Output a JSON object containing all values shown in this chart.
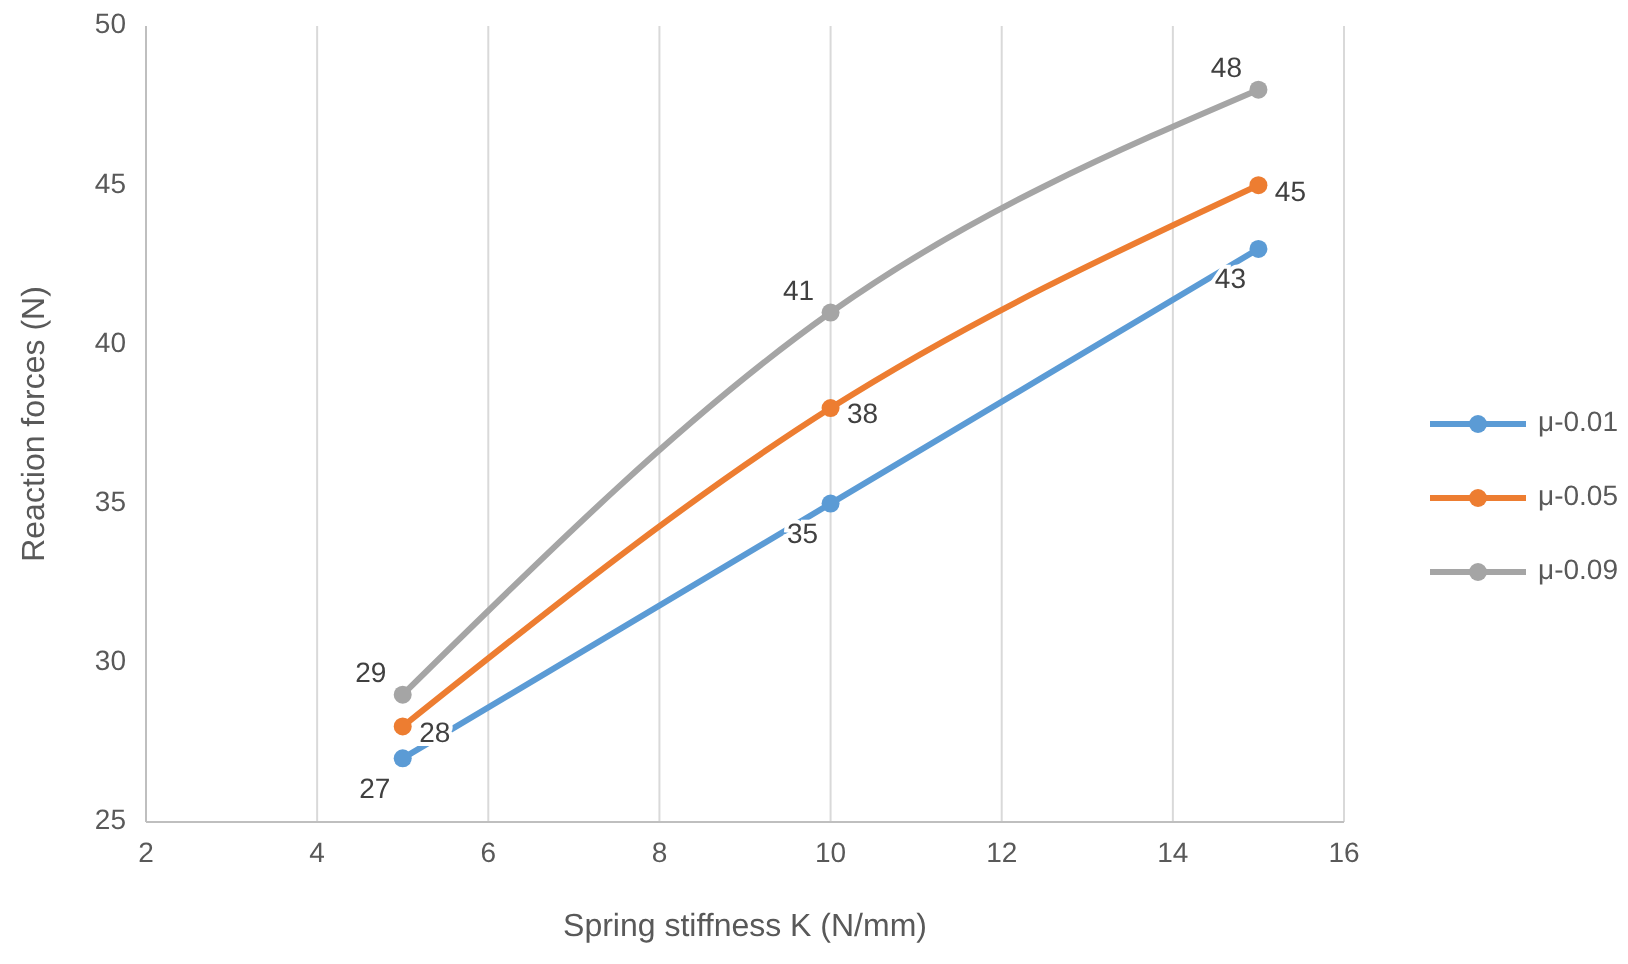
{
  "chart_data": {
    "type": "line",
    "xlabel": "Spring stiffness K (N/mm)",
    "ylabel": "Reaction forces (N)",
    "x": [
      5,
      10,
      15
    ],
    "series": [
      {
        "name": "μ-0.01",
        "color": "#5b9bd5",
        "values": [
          27,
          35,
          43
        ]
      },
      {
        "name": "μ-0.05",
        "color": "#ed7d31",
        "values": [
          28,
          38,
          45
        ]
      },
      {
        "name": "μ-0.09",
        "color": "#a5a5a5",
        "values": [
          29,
          41,
          48
        ]
      }
    ],
    "xlim": [
      2,
      16
    ],
    "xticks": [
      2,
      4,
      6,
      8,
      10,
      12,
      14,
      16
    ],
    "ylim": [
      25,
      50
    ],
    "yticks": [
      25,
      30,
      35,
      40,
      45,
      50
    ],
    "grid": "x",
    "legend": "right",
    "marker": "circle",
    "line_style": "solid",
    "data_labels": true
  }
}
